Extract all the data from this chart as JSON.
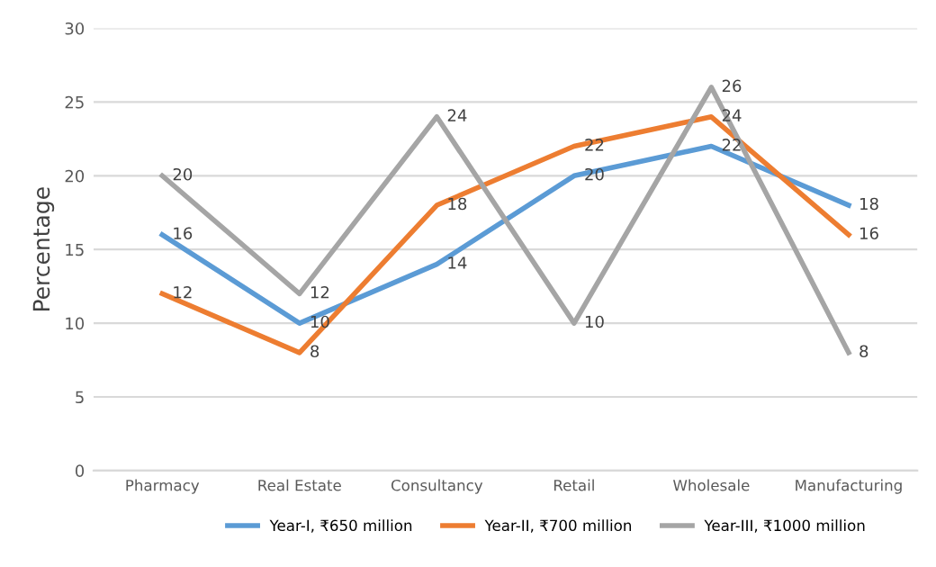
{
  "chart_data": {
    "type": "line",
    "ylabel": "Percentage",
    "categories": [
      "Pharmacy",
      "Real Estate",
      "Consultancy",
      "Retail",
      "Wholesale",
      "Manufacturing"
    ],
    "series": [
      {
        "name": "Year-I, ₹650 million",
        "color": "#5b9bd5",
        "values": [
          16,
          10,
          14,
          20,
          22,
          18
        ]
      },
      {
        "name": "Year-II, ₹700 million",
        "color": "#ed7d31",
        "values": [
          12,
          8,
          18,
          22,
          24,
          16
        ]
      },
      {
        "name": "Year-III, ₹1000 million",
        "color": "#a5a5a5",
        "values": [
          20,
          12,
          24,
          10,
          26,
          8
        ]
      }
    ],
    "ylim": [
      0,
      30
    ],
    "yticks": [
      0,
      5,
      10,
      15,
      20,
      25,
      30
    ],
    "grid": "y",
    "legend": "bottom",
    "data_labels": true,
    "marker": "none",
    "line_style": "solid"
  }
}
